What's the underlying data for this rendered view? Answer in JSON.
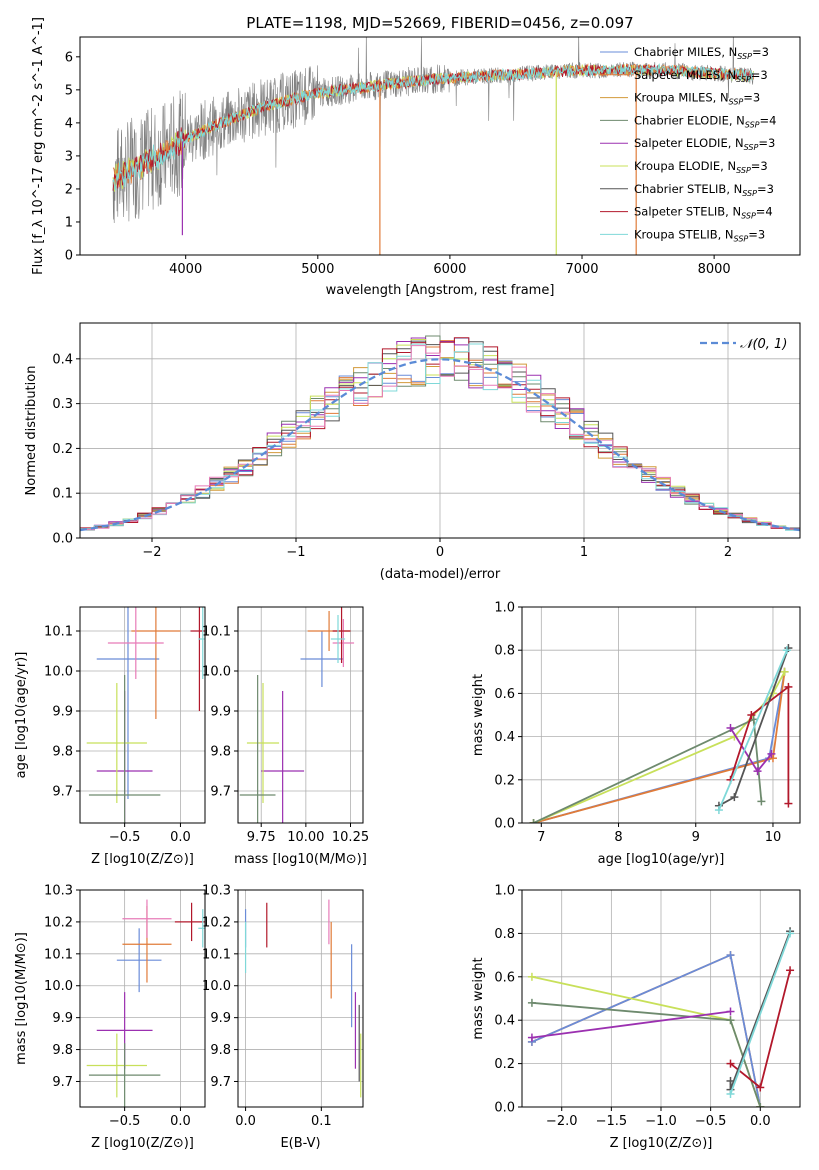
{
  "figure_title": "PLATE=1198, MJD=52669, FIBERID=0456, z=0.097",
  "colors": {
    "chabrier_miles": "#6a8cd8",
    "salpeter_miles": "#e07b39",
    "kroupa_miles": "#d29a3a",
    "chabrier_elodie": "#6e8a6e",
    "salpeter_elodie": "#9b30b0",
    "kroupa_elodie": "#c8e05a",
    "chabrier_stelib": "#555555",
    "salpeter_stelib": "#b2182b",
    "kroupa_stelib": "#7fd8d8",
    "pink": "#e77bb8",
    "normal": "#5b8bd6",
    "spectrum_grey": "#808080",
    "grid": "#b0b0b0"
  },
  "chart_data": [
    {
      "type": "line",
      "panel": "spectrum",
      "title": "PLATE=1198, MJD=52669, FIBERID=0456, z=0.097",
      "xlabel": "wavelength [Angstrom, rest frame]",
      "ylabel": "Flux [f_λ 10^-17 erg cm^-2 s^-1 A^-1]",
      "xlim": [
        3200,
        8650
      ],
      "ylim": [
        0,
        6.6
      ],
      "xticks": [
        "4000",
        "5000",
        "6000",
        "7000",
        "8000"
      ],
      "yticks": [
        "0",
        "1",
        "2",
        "3",
        "4",
        "5",
        "6"
      ],
      "legend_position": "upper-right",
      "legend": [
        {
          "base": "Chabrier MILES, N",
          "n": "3",
          "color": "chabrier_miles"
        },
        {
          "base": "Salpeter MILES, N",
          "n": "3",
          "color": "salpeter_miles"
        },
        {
          "base": "Kroupa MILES, N",
          "n": "3",
          "color": "kroupa_miles"
        },
        {
          "base": "Chabrier ELODIE, N",
          "n": "4",
          "color": "chabrier_elodie"
        },
        {
          "base": "Salpeter ELODIE, N",
          "n": "3",
          "color": "salpeter_elodie"
        },
        {
          "base": "Kroupa ELODIE, N",
          "n": "3",
          "color": "kroupa_elodie"
        },
        {
          "base": "Chabrier STELIB, N",
          "n": "3",
          "color": "chabrier_stelib"
        },
        {
          "base": "Salpeter STELIB, N",
          "n": "4",
          "color": "salpeter_stelib"
        },
        {
          "base": "Kroupa STELIB, N",
          "n": "3",
          "color": "kroupa_stelib"
        }
      ],
      "continuum": {
        "x": [
          3450,
          3600,
          3800,
          4000,
          4200,
          4400,
          4600,
          4800,
          5000,
          5200,
          5400,
          5600,
          5800,
          6000,
          6200,
          6400,
          6600,
          6800,
          7000,
          7200,
          7400,
          7600,
          7800,
          8000,
          8200,
          8300
        ],
        "y": [
          2.3,
          2.6,
          3.0,
          3.5,
          3.9,
          4.2,
          4.5,
          4.7,
          4.9,
          5.0,
          5.1,
          5.2,
          5.3,
          5.35,
          5.4,
          5.45,
          5.5,
          5.55,
          5.6,
          5.6,
          5.6,
          5.6,
          5.55,
          5.5,
          5.45,
          5.4
        ]
      },
      "absorption_spikes": [
        {
          "x": 5470,
          "y": 0,
          "color": "salpeter_miles"
        },
        {
          "x": 6805,
          "y": 0,
          "color": "kroupa_elodie"
        },
        {
          "x": 7410,
          "y": 0,
          "color": "salpeter_miles"
        },
        {
          "x": 3975,
          "y": 0.6,
          "color": "salpeter_elodie"
        }
      ]
    },
    {
      "type": "histogram",
      "panel": "residuals",
      "xlabel": "(data-model)/error",
      "ylabel": "Normed distribution",
      "xlim": [
        -2.5,
        2.5
      ],
      "ylim": [
        0,
        0.48
      ],
      "xticks": [
        "−2",
        "−1",
        "0",
        "1",
        "2"
      ],
      "yticks": [
        "0.0",
        "0.1",
        "0.2",
        "0.3",
        "0.4"
      ],
      "grid": true,
      "legend_position": "upper-right",
      "legend_label": "𝒩(0, 1)",
      "bin_width": 0.1,
      "series_colors": [
        "chabrier_miles",
        "salpeter_miles",
        "kroupa_miles",
        "chabrier_elodie",
        "salpeter_elodie",
        "kroupa_elodie",
        "chabrier_stelib",
        "salpeter_stelib",
        "kroupa_stelib",
        "pink"
      ]
    },
    {
      "type": "scatter",
      "panel": "age_vs_Z",
      "xlabel": "Z [log10(Z/Z⊙)]",
      "ylabel": "age  [log10(age/yr)]",
      "xlim": [
        -0.9,
        0.22
      ],
      "ylim": [
        9.62,
        10.16
      ],
      "xticks": [
        "−0.5",
        "0.0"
      ],
      "yticks": [
        "9.7",
        "9.8",
        "9.9",
        "10.0",
        "10.1"
      ],
      "grid": true,
      "points": [
        {
          "x": -0.47,
          "y": 10.03,
          "xerr": 0.28,
          "yerr": 0.35,
          "color": "chabrier_miles"
        },
        {
          "x": -0.22,
          "y": 10.1,
          "xerr": 0.22,
          "yerr": 0.22,
          "color": "salpeter_miles"
        },
        {
          "x": -0.4,
          "y": 10.07,
          "xerr": 0.25,
          "yerr": 0.09,
          "color": "pink"
        },
        {
          "x": 0.17,
          "y": 10.1,
          "xerr": 0.08,
          "yerr": 0.2,
          "color": "salpeter_stelib"
        },
        {
          "x": 0.2,
          "y": 10.08,
          "xerr": 0.04,
          "yerr": 0.1,
          "color": "kroupa_stelib"
        },
        {
          "x": -0.5,
          "y": 9.75,
          "xerr": 0.25,
          "yerr": 0.2,
          "color": "salpeter_elodie"
        },
        {
          "x": -0.57,
          "y": 9.82,
          "xerr": 0.27,
          "yerr": 0.15,
          "color": "kroupa_elodie"
        },
        {
          "x": -0.5,
          "y": 9.69,
          "xerr": 0.32,
          "yerr": 0.3,
          "color": "chabrier_elodie"
        }
      ]
    },
    {
      "type": "scatter",
      "panel": "age_vs_mass",
      "xlabel": "mass [log10(M/M⊙)]",
      "ylabel": "",
      "xlim": [
        9.62,
        10.32
      ],
      "ylim": [
        9.62,
        10.16
      ],
      "xticks": [
        "9.75",
        "10.00",
        "10.25"
      ],
      "yticks": [
        "9.7",
        "9.8",
        "9.9",
        "10.0",
        "10.1"
      ],
      "grid": true,
      "points": [
        {
          "x": 10.09,
          "y": 10.03,
          "xerr": 0.12,
          "yerr": 0.07,
          "color": "chabrier_miles"
        },
        {
          "x": 10.13,
          "y": 10.1,
          "xerr": 0.12,
          "yerr": 0.05,
          "color": "salpeter_miles"
        },
        {
          "x": 10.21,
          "y": 10.07,
          "xerr": 0.06,
          "yerr": 0.06,
          "color": "pink"
        },
        {
          "x": 10.2,
          "y": 10.1,
          "xerr": 0.05,
          "yerr": 0.08,
          "color": "salpeter_stelib"
        },
        {
          "x": 10.18,
          "y": 10.08,
          "xerr": 0.04,
          "yerr": 0.06,
          "color": "kroupa_stelib"
        },
        {
          "x": 9.87,
          "y": 9.75,
          "xerr": 0.12,
          "yerr": 0.2,
          "color": "salpeter_elodie"
        },
        {
          "x": 9.76,
          "y": 9.82,
          "xerr": 0.09,
          "yerr": 0.15,
          "color": "kroupa_elodie"
        },
        {
          "x": 9.73,
          "y": 9.69,
          "xerr": 0.1,
          "yerr": 0.3,
          "color": "chabrier_elodie"
        }
      ]
    },
    {
      "type": "line",
      "panel": "mass_weight_vs_age",
      "xlabel": "age  [log10(age/yr)]",
      "ylabel": "mass weight",
      "xlim": [
        6.75,
        10.35
      ],
      "ylim": [
        0,
        1.0
      ],
      "xticks": [
        "7",
        "8",
        "9",
        "10"
      ],
      "yticks": [
        "0.0",
        "0.2",
        "0.4",
        "0.6",
        "0.8",
        "1.0"
      ],
      "grid": true,
      "series": [
        {
          "color": "chabrier_miles",
          "x": [
            6.9,
            9.95,
            10.15
          ],
          "y": [
            0.0,
            0.3,
            0.7
          ]
        },
        {
          "color": "salpeter_miles",
          "x": [
            6.9,
            10.0,
            10.15
          ],
          "y": [
            0.0,
            0.3,
            0.7
          ]
        },
        {
          "color": "kroupa_elodie",
          "x": [
            6.9,
            9.5,
            10.0,
            10.15
          ],
          "y": [
            0.0,
            0.4,
            0.6,
            0.7
          ]
        },
        {
          "color": "chabrier_elodie",
          "x": [
            6.9,
            9.75,
            9.85
          ],
          "y": [
            0.0,
            0.48,
            0.1
          ]
        },
        {
          "color": "salpeter_elodie",
          "x": [
            9.45,
            9.8,
            9.98
          ],
          "y": [
            0.44,
            0.24,
            0.32
          ]
        },
        {
          "color": "salpeter_stelib",
          "x": [
            9.45,
            9.72,
            10.2,
            10.2
          ],
          "y": [
            0.2,
            0.5,
            0.63,
            0.09
          ]
        },
        {
          "color": "chabrier_stelib",
          "x": [
            9.3,
            9.5,
            10.2
          ],
          "y": [
            0.08,
            0.12,
            0.81
          ]
        },
        {
          "color": "kroupa_stelib",
          "x": [
            9.3,
            10.18
          ],
          "y": [
            0.06,
            0.8
          ]
        }
      ]
    },
    {
      "type": "scatter",
      "panel": "mass_vs_Z",
      "xlabel": "Z [log10(Z/Z⊙)]",
      "ylabel": "mass [log10(M/M⊙)]",
      "xlim": [
        -0.9,
        0.22
      ],
      "ylim": [
        9.62,
        10.3
      ],
      "xticks": [
        "−0.5",
        "0.0"
      ],
      "yticks": [
        "9.7",
        "9.8",
        "9.9",
        "10.0",
        "10.1",
        "10.2",
        "10.3"
      ],
      "grid": true,
      "points": [
        {
          "x": -0.37,
          "y": 10.08,
          "xerr": 0.2,
          "yerr": 0.1,
          "color": "chabrier_miles"
        },
        {
          "x": -0.3,
          "y": 10.13,
          "xerr": 0.22,
          "yerr": 0.12,
          "color": "salpeter_miles"
        },
        {
          "x": -0.3,
          "y": 10.21,
          "xerr": 0.22,
          "yerr": 0.06,
          "color": "pink"
        },
        {
          "x": 0.1,
          "y": 10.2,
          "xerr": 0.15,
          "yerr": 0.06,
          "color": "salpeter_stelib"
        },
        {
          "x": 0.2,
          "y": 10.18,
          "xerr": 0.04,
          "yerr": 0.06,
          "color": "kroupa_stelib"
        },
        {
          "x": -0.5,
          "y": 9.86,
          "xerr": 0.25,
          "yerr": 0.12,
          "color": "salpeter_elodie"
        },
        {
          "x": -0.57,
          "y": 9.75,
          "xerr": 0.27,
          "yerr": 0.1,
          "color": "kroupa_elodie"
        },
        {
          "x": -0.5,
          "y": 9.72,
          "xerr": 0.32,
          "yerr": 0.1,
          "color": "chabrier_elodie"
        }
      ]
    },
    {
      "type": "scatter",
      "panel": "mass_vs_ebv",
      "xlabel": "E(B-V)",
      "ylabel": "",
      "xlim": [
        -0.01,
        0.155
      ],
      "ylim": [
        9.62,
        10.3
      ],
      "xticks": [
        "0.0",
        "0.1"
      ],
      "yticks": [
        "9.7",
        "9.8",
        "9.9",
        "10.0",
        "10.1",
        "10.2",
        "10.3"
      ],
      "grid": true,
      "points": [
        {
          "x": 0.0,
          "y": 10.18,
          "yerr": 0.06,
          "color": "chabrier_miles"
        },
        {
          "x": 0.0,
          "y": 10.12,
          "yerr": 0.08,
          "color": "kroupa_stelib"
        },
        {
          "x": 0.028,
          "y": 10.19,
          "yerr": 0.07,
          "color": "salpeter_stelib"
        },
        {
          "x": 0.11,
          "y": 10.2,
          "yerr": 0.07,
          "color": "pink"
        },
        {
          "x": 0.113,
          "y": 10.08,
          "yerr": 0.12,
          "color": "salpeter_miles"
        },
        {
          "x": 0.14,
          "y": 10.0,
          "yerr": 0.13,
          "color": "chabrier_miles"
        },
        {
          "x": 0.145,
          "y": 9.86,
          "yerr": 0.12,
          "color": "salpeter_elodie"
        },
        {
          "x": 0.15,
          "y": 9.82,
          "yerr": 0.12,
          "color": "chabrier_stelib"
        },
        {
          "x": 0.152,
          "y": 9.75,
          "yerr": 0.1,
          "color": "kroupa_elodie"
        }
      ]
    },
    {
      "type": "line",
      "panel": "mass_weight_vs_Z",
      "xlabel": "Z [log10(Z/Z⊙)]",
      "ylabel": "mass weight",
      "xlim": [
        -2.4,
        0.4
      ],
      "ylim": [
        0,
        1.0
      ],
      "xticks": [
        "−2.0",
        "−1.5",
        "−1.0",
        "−0.5",
        "0.0"
      ],
      "yticks": [
        "0.0",
        "0.2",
        "0.4",
        "0.6",
        "0.8",
        "1.0"
      ],
      "grid": true,
      "series": [
        {
          "color": "salpeter_miles",
          "x": [
            -2.3,
            -0.3,
            0.0
          ],
          "y": [
            0.3,
            0.7,
            0.0
          ]
        },
        {
          "color": "chabrier_miles",
          "x": [
            -2.3,
            -0.3,
            0.0
          ],
          "y": [
            0.3,
            0.7,
            0.0
          ]
        },
        {
          "color": "kroupa_elodie",
          "x": [
            -2.3,
            -0.3,
            0.0
          ],
          "y": [
            0.6,
            0.4,
            0.0
          ]
        },
        {
          "color": "chabrier_elodie",
          "x": [
            -2.3,
            -0.3,
            0.0
          ],
          "y": [
            0.48,
            0.4,
            0.0
          ]
        },
        {
          "color": "salpeter_elodie",
          "x": [
            -2.3,
            -0.3
          ],
          "y": [
            0.32,
            0.44
          ]
        },
        {
          "color": "salpeter_stelib",
          "x": [
            -0.3,
            0.0,
            0.3
          ],
          "y": [
            0.2,
            0.09,
            0.63
          ]
        },
        {
          "color": "chabrier_stelib",
          "x": [
            -0.3,
            -0.3,
            0.3
          ],
          "y": [
            0.12,
            0.08,
            0.81
          ]
        },
        {
          "color": "kroupa_stelib",
          "x": [
            -0.3,
            0.3
          ],
          "y": [
            0.06,
            0.8
          ]
        }
      ]
    }
  ]
}
